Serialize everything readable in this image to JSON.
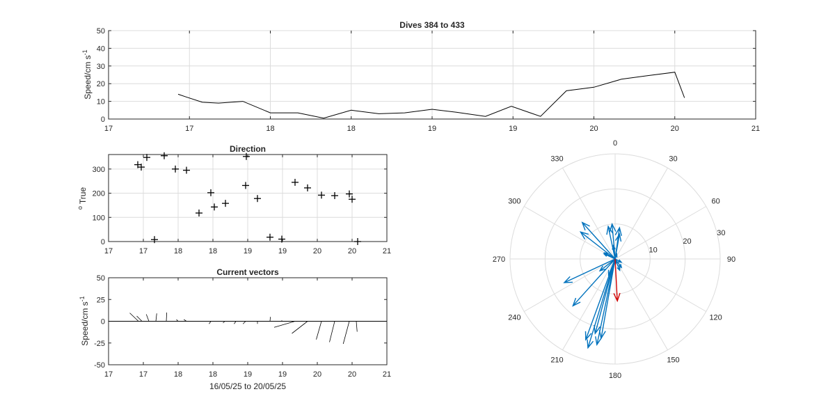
{
  "colors": {
    "axis": "#262626",
    "grid": "#dcdcdc",
    "line": "#000000",
    "quiver": "#0072bd",
    "mean_vector": "#d00000"
  },
  "chart_data": [
    {
      "id": "speed",
      "type": "line",
      "title": "Dives 384 to 433",
      "ylabel": "Speed/cm s",
      "ylabel_superscript": "-1",
      "xlim": [
        17.0,
        21.0
      ],
      "ylim": [
        0,
        50
      ],
      "xticks": [
        17.0,
        17.5,
        18.0,
        18.5,
        19.0,
        19.5,
        20.0,
        20.5,
        21.0
      ],
      "xtick_labels": [
        "17",
        "17",
        "18",
        "18",
        "19",
        "19",
        "20",
        "20",
        "21"
      ],
      "yticks": [
        0,
        10,
        20,
        30,
        40,
        50
      ],
      "ytick_labels": [
        "0",
        "10",
        "20",
        "30",
        "40",
        "50"
      ],
      "grid": true,
      "x": [
        17.43,
        17.48,
        17.58,
        17.68,
        17.83,
        18.0,
        18.17,
        18.33,
        18.5,
        18.67,
        18.83,
        19.0,
        19.15,
        19.33,
        19.49,
        19.67,
        19.83,
        20.0,
        20.17,
        20.33,
        20.5,
        20.56
      ],
      "y": [
        14,
        12.5,
        9.5,
        9,
        10,
        3.5,
        3.5,
        0.5,
        5,
        3,
        3.5,
        5.5,
        3.8,
        1.5,
        7.2,
        1.5,
        16,
        18,
        22.5,
        24.5,
        26.5,
        12
      ]
    },
    {
      "id": "direction",
      "type": "scatter",
      "title": "Direction",
      "ylabel": "True",
      "ylabel_prefix": "o",
      "xlim": [
        17.0,
        21.0
      ],
      "ylim": [
        0,
        360
      ],
      "xticks": [
        17.0,
        17.5,
        18.0,
        18.5,
        19.0,
        19.5,
        20.0,
        20.5,
        21.0
      ],
      "xtick_labels": [
        "17",
        "17",
        "18",
        "18",
        "19",
        "19",
        "20",
        "20",
        "21"
      ],
      "yticks": [
        0,
        100,
        200,
        300
      ],
      "ytick_labels": [
        "0",
        "100",
        "200",
        "300"
      ],
      "grid": true,
      "marker": "+",
      "x": [
        17.42,
        17.47,
        17.55,
        17.66,
        17.8,
        17.96,
        18.12,
        18.3,
        18.47,
        18.52,
        18.68,
        18.97,
        18.98,
        19.14,
        19.32,
        19.49,
        19.68,
        19.86,
        20.06,
        20.25,
        20.46,
        20.5,
        20.58
      ],
      "y": [
        318,
        308,
        348,
        8,
        355,
        300,
        295,
        118,
        202,
        143,
        158,
        232,
        352,
        178,
        18,
        10,
        245,
        222,
        192,
        190,
        197,
        175,
        0
      ]
    },
    {
      "id": "vectors",
      "type": "quiver",
      "title": "Current vectors",
      "ylabel": "Speed/cm s",
      "ylabel_superscript": "-1",
      "xlabel": "16/05/25 to 20/05/25",
      "xlim": [
        17.0,
        21.0
      ],
      "ylim": [
        -50,
        50
      ],
      "xticks": [
        17.0,
        17.5,
        18.0,
        18.5,
        19.0,
        19.5,
        20.0,
        20.5,
        21.0
      ],
      "xtick_labels": [
        "17",
        "17",
        "18",
        "18",
        "19",
        "19",
        "20",
        "20",
        "21"
      ],
      "yticks": [
        -50,
        -25,
        0,
        25,
        50
      ],
      "ytick_labels": [
        "-50",
        "-25",
        "0",
        "25",
        "50"
      ],
      "grid": false,
      "vectors": [
        {
          "x": 17.43,
          "u": -10,
          "v": 9.5
        },
        {
          "x": 17.48,
          "u": -6,
          "v": 6
        },
        {
          "x": 17.58,
          "u": -3,
          "v": 8
        },
        {
          "x": 17.68,
          "u": 1,
          "v": 9
        },
        {
          "x": 17.83,
          "u": 0.5,
          "v": 10
        },
        {
          "x": 18.0,
          "u": -2,
          "v": 2
        },
        {
          "x": 18.12,
          "u": -3,
          "v": 2
        },
        {
          "x": 18.47,
          "u": -2,
          "v": -3
        },
        {
          "x": 18.67,
          "u": -2,
          "v": -2
        },
        {
          "x": 18.83,
          "u": -2,
          "v": -3
        },
        {
          "x": 18.97,
          "u": -3,
          "v": -3
        },
        {
          "x": 19.14,
          "u": 0,
          "v": -3
        },
        {
          "x": 19.32,
          "u": 0.5,
          "v": 5
        },
        {
          "x": 19.49,
          "u": 0,
          "v": 1
        },
        {
          "x": 19.68,
          "u": -24,
          "v": -7
        },
        {
          "x": 19.86,
          "u": -18,
          "v": -14
        },
        {
          "x": 20.06,
          "u": -6,
          "v": -21
        },
        {
          "x": 20.25,
          "u": -6,
          "v": -24
        },
        {
          "x": 20.46,
          "u": -7,
          "v": -26
        },
        {
          "x": 20.56,
          "u": 1,
          "v": -12
        }
      ]
    },
    {
      "id": "compass",
      "type": "polar",
      "rlim": [
        0,
        30
      ],
      "rticks": [
        10,
        20,
        30
      ],
      "rtick_labels": [
        "10",
        "20",
        "30"
      ],
      "theta_ticks": [
        0,
        30,
        60,
        90,
        120,
        150,
        180,
        210,
        240,
        270,
        300,
        330
      ],
      "theta_labels": [
        "0",
        "30",
        "60",
        "90",
        "120",
        "150",
        "180",
        "210",
        "240",
        "270",
        "300",
        "330"
      ],
      "vectors": [
        {
          "dir": 318,
          "mag": 14
        },
        {
          "dir": 308,
          "mag": 12.5
        },
        {
          "dir": 348,
          "mag": 9.5
        },
        {
          "dir": 8,
          "mag": 9
        },
        {
          "dir": 355,
          "mag": 10
        },
        {
          "dir": 300,
          "mag": 3.5
        },
        {
          "dir": 295,
          "mag": 3.5
        },
        {
          "dir": 118,
          "mag": 2
        },
        {
          "dir": 202,
          "mag": 5
        },
        {
          "dir": 143,
          "mag": 3
        },
        {
          "dir": 158,
          "mag": 3.5
        },
        {
          "dir": 232,
          "mag": 5.5
        },
        {
          "dir": 352,
          "mag": 3.8
        },
        {
          "dir": 178,
          "mag": 1.5
        },
        {
          "dir": 18,
          "mag": 1.5
        },
        {
          "dir": 10,
          "mag": 7.2
        },
        {
          "dir": 245,
          "mag": 16
        },
        {
          "dir": 222,
          "mag": 18
        },
        {
          "dir": 192,
          "mag": 25
        },
        {
          "dir": 190,
          "mag": 23
        },
        {
          "dir": 197,
          "mag": 26.5
        },
        {
          "dir": 195,
          "mag": 22
        },
        {
          "dir": 200,
          "mag": 24.5
        }
      ],
      "mean_vector": {
        "dir": 177,
        "mag": 12
      }
    }
  ]
}
